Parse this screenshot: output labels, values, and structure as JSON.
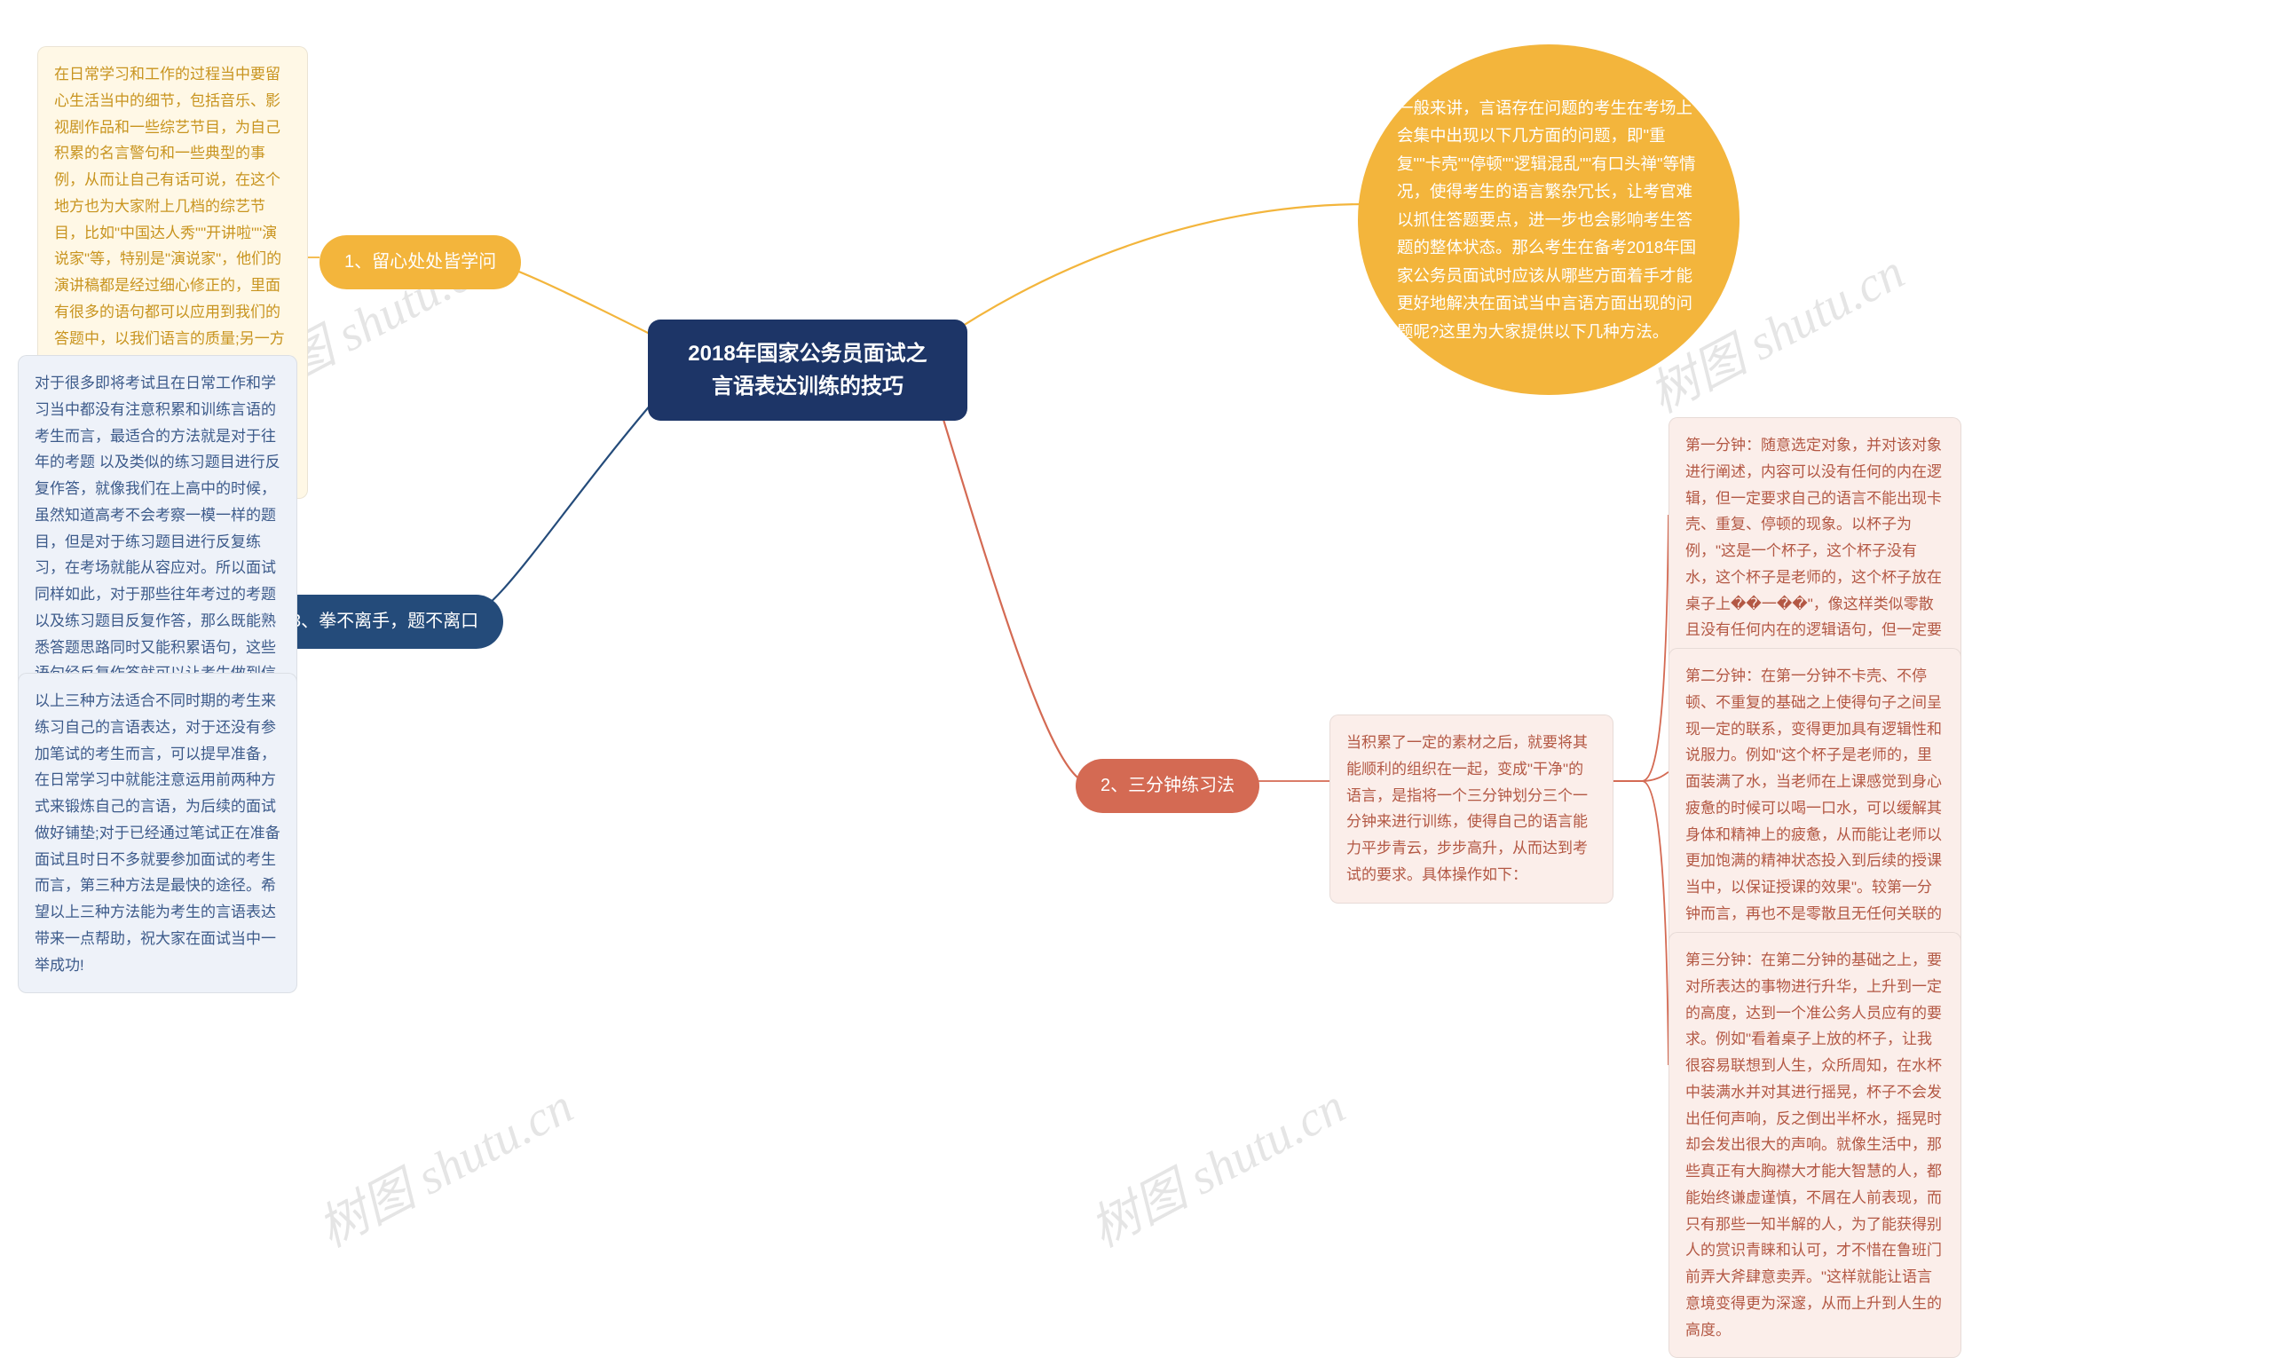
{
  "colors": {
    "center_bg": "#1d3567",
    "yellow": "#f3b53c",
    "navy": "#244b7a",
    "coral": "#d46a53",
    "box_yellow_bg": "#fff8e6",
    "box_yellow_text": "#c8941f",
    "box_navy_bg": "#eef2f9",
    "box_navy_text": "#3c5a8a",
    "box_coral_bg": "#fbeeea",
    "box_coral_text": "#b35844",
    "link": "#8a8a8a",
    "watermark": "rgba(0,0,0,0.10)"
  },
  "watermark_text": "树图 shutu.cn",
  "center": {
    "text": "2018年国家公务员面试之\n言语表达训练的技巧"
  },
  "branch_intro": {
    "text": "一般来讲，言语存在问题的考生在考场上会集中出现以下几方面的问题，即\"重复\"\"卡壳\"\"停顿\"\"逻辑混乱\"\"有口头禅\"等情况，使得考生的语言繁杂冗长，让考官难以抓住答题要点，进一步也会影响考生答题的整体状态。那么考生在备考2018年国家公务员面试时应该从哪些方面着手才能更好地解决在面试当中言语方面出现的问题呢?这里为大家提供以下几种方法。"
  },
  "branch1": {
    "label": "1、留心处处皆学问",
    "box": "在日常学习和工作的过程当中要留心生活当中的细节，包括音乐、影视剧作品和一些综艺节目，为自己积累的名言警句和一些典型的事例，从而让自己有话可说，在这个地方也为大家附上几档的综艺节目，比如\"中国达人秀\"\"开讲啦\"\"演说家\"等，特别是\"演说家\"，他们的演讲稿都是经过细心修正的，里面有很多的语句都可以应用到我们的答题中，以我们语言的质量;另一方面这些节目当中一些像刘伟、万志、章枣儿等激励人心的事例更能为作答智能性问题奠定良好的基础，使得答题时内容的充实度和新颖度能大大。"
  },
  "branch2": {
    "label": "2、三分钟练习法",
    "box_intro": "当积累了一定的素材之后，就要将其能顺利的组织在一起，变成\"干净\"的语言，是指将一个三分钟划分三个一分钟来进行训练，使得自己的语言能力平步青云，步步高升，从而达到考试的要求。具体操作如下：",
    "minute1": "第一分钟：随意选定对象，并对该对象进行阐述，内容可以没有任何的内在逻辑，但一定要求自己的语言不能出现卡壳、重复、停顿的现象。以杯子为例，\"这是一个杯子，这个杯子没有水，这个杯子是老师的，这个杯子放在桌子上��一��\"，像这样类似零散且没有任何内在的逻辑语句，但一定要注意流畅性，不能出现卡壳、停顿、重复、口头禅等情况。",
    "minute2": "第二分钟：在第一分钟不卡壳、不停顿、不重复的基础之上使得句子之间呈现一定的联系，变得更加具有逻辑性和说服力。例如\"这个杯子是老师的，里面装满了水，当老师在上课感觉到身心疲惫的时候可以喝一口水，可以缓解其身体和精神上的疲惫，从而能让老师以更加饱满的精神状态投入到后续的授课当中，以保证授课的效果\"。较第一分钟而言，再也不是零散且无任何关联的语句，经反复对不同事物进行训练，即可达到语句干净言简意赅流畅自如。",
    "minute3": "第三分钟：在第二分钟的基础之上，要对所表达的事物进行升华，上升到一定的高度，达到一个准公务人员应有的要求。例如\"看着桌子上放的杯子，让我很容易联想到人生，众所周知，在水杯中装满水并对其进行摇晃，杯子不会发出任何声响，反之倒出半杯水，摇晃时却会发出很大的声响。就像生活中，那些真正有大胸襟大才能大智慧的人，都能始终谦虚谨慎，不屑在人前表现，而只有那些一知半解的人，为了能获得别人的赏识青睐和认可，才不惜在鲁班门前弄大斧肆意卖弄。\"这样就能让语言意境变得更为深邃，从而上升到人生的高度。"
  },
  "branch3": {
    "label": "3、拳不离手，题不离口",
    "box1": "对于很多即将考试且在日常工作和学习当中都没有注意积累和训练言语的考生而言，最适合的方法就是对于往年的考题 以及类似的练习题目进行反复作答，就像我们在上高中的时候，虽然知道高考不会考察一模一样的题目，但是对于练习题目进行反复练习，在考场就能从容应对。所以面试同样如此，对于那些往年考过的考题 以及练习题目反复作答，那么既能熟悉答题思路同时又能积累语句，这些语句经反复作答就可以让考生做到信手拈来，以至于考生在考场上一旦遇到类似的问题就能应对得游刃有余。",
    "box2": "以上三种方法适合不同时期的考生来练习自己的言语表达，对于还没有参加笔试的考生而言，可以提早准备，在日常学习中就能注意运用前两种方式来锻炼自己的言语，为后续的面试做好铺垫;对于已经通过笔试正在准备面试且时日不多就要参加面试的考生而言，第三种方法是最快的途径。希望以上三种方法能为考生的言语表达带来一点帮助，祝大家在面试当中一举成功!"
  }
}
